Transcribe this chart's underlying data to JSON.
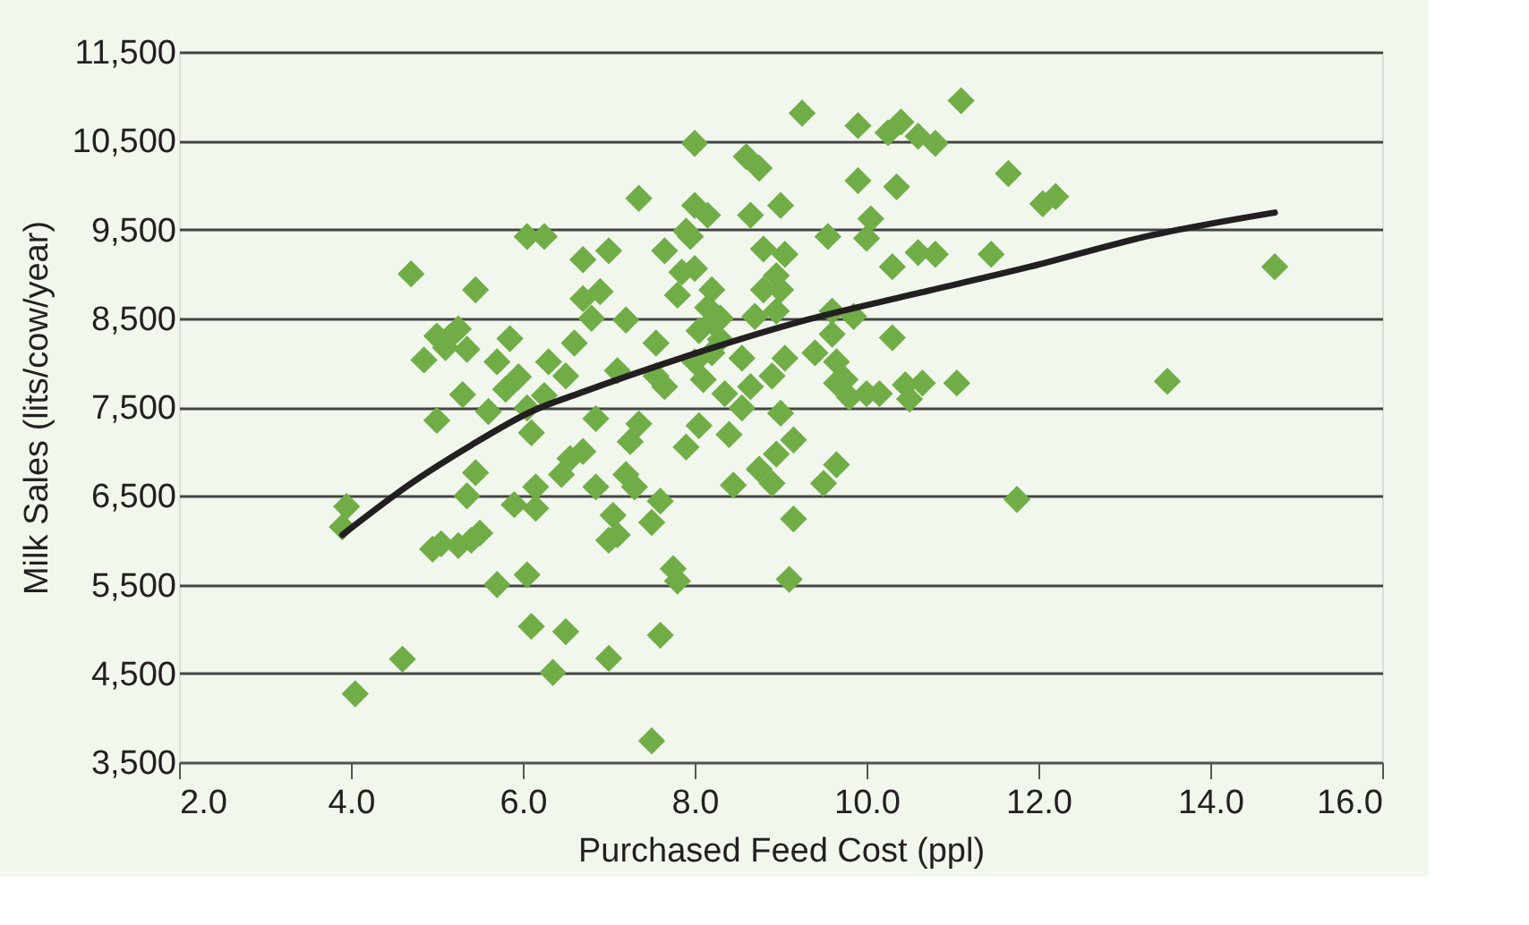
{
  "chart_data": {
    "type": "scatter",
    "xlabel": "Purchased Feed Cost (ppl)",
    "ylabel": "Milk Sales (lits/cow/year)",
    "grid": "y",
    "xlim": [
      2,
      16
    ],
    "xticks": [
      {
        "value": 2,
        "label": "2.0"
      },
      {
        "value": 4,
        "label": "4.0"
      },
      {
        "value": 6,
        "label": "6.0"
      },
      {
        "value": 8,
        "label": "8.0"
      },
      {
        "value": 10,
        "label": "10.0"
      },
      {
        "value": 12,
        "label": "12.0"
      },
      {
        "value": 14,
        "label": "14.0"
      },
      {
        "value": 16,
        "label": "16.0"
      }
    ],
    "ylim": [
      3500,
      11500
    ],
    "yticks": [
      {
        "value": 3500,
        "label": "3,500"
      },
      {
        "value": 4500,
        "label": "4,500"
      },
      {
        "value": 5500,
        "label": "5,500"
      },
      {
        "value": 6500,
        "label": "6,500"
      },
      {
        "value": 7500,
        "label": "7,500"
      },
      {
        "value": 8500,
        "label": "8,500"
      },
      {
        "value": 9500,
        "label": "9,500"
      },
      {
        "value": 10500,
        "label": "10,500"
      },
      {
        "value": 11500,
        "label": "11,500"
      }
    ],
    "series": [
      {
        "marker": "diamond",
        "color": "#70ad47",
        "x": [
          4.05,
          3.95,
          3.9,
          4.6,
          4.7,
          4.85,
          5.0,
          5.1,
          5.0,
          5.25,
          5.35,
          5.45,
          5.3,
          5.15,
          5.35,
          5.45,
          5.5,
          5.05,
          4.95,
          5.25,
          5.4,
          5.7,
          5.6,
          5.8,
          5.85,
          5.7,
          6.05,
          6.25,
          5.95,
          6.05,
          6.1,
          6.15,
          5.9,
          6.15,
          6.05,
          6.1,
          6.35,
          6.5,
          6.25,
          6.3,
          6.45,
          6.55,
          6.5,
          6.6,
          6.7,
          6.8,
          6.7,
          6.9,
          6.85,
          6.7,
          6.85,
          7.0,
          7.05,
          7.0,
          7.1,
          7.2,
          7.25,
          7.3,
          7.35,
          7.35,
          7.1,
          7.0,
          7.2,
          7.5,
          7.6,
          7.5,
          7.75,
          7.8,
          7.6,
          7.55,
          7.55,
          7.65,
          7.8,
          7.85,
          7.65,
          7.9,
          8.0,
          7.95,
          8.0,
          8.0,
          8.15,
          8.2,
          8.15,
          8.05,
          8.2,
          8.3,
          8.0,
          8.1,
          8.2,
          8.3,
          7.9,
          8.05,
          8.35,
          8.4,
          8.45,
          8.55,
          8.55,
          8.65,
          8.7,
          8.75,
          8.6,
          8.75,
          8.65,
          8.8,
          8.8,
          9.0,
          9.05,
          8.95,
          8.95,
          9.0,
          9.05,
          8.9,
          9.0,
          8.95,
          8.9,
          9.15,
          9.15,
          9.1,
          9.25,
          9.4,
          9.5,
          9.6,
          9.6,
          9.65,
          9.65,
          9.55,
          9.65,
          9.75,
          9.8,
          9.85,
          9.9,
          9.9,
          10.0,
          10.05,
          10.0,
          10.15,
          10.3,
          10.3,
          10.35,
          10.4,
          10.25,
          10.45,
          10.5,
          10.6,
          10.65,
          10.6,
          10.8,
          10.8,
          11.05,
          11.1,
          11.45,
          11.65,
          11.75,
          12.05,
          12.2,
          13.5,
          14.75
        ],
        "values": [
          4270,
          6380,
          6150,
          4660,
          9000,
          8030,
          8300,
          8170,
          7350,
          8380,
          8150,
          8820,
          7640,
          8290,
          6500,
          6760,
          6080,
          5960,
          5900,
          5940,
          6000,
          5500,
          7450,
          7700,
          8270,
          8010,
          9420,
          9420,
          7840,
          7490,
          7210,
          6600,
          6400,
          6360,
          5610,
          5030,
          4510,
          4970,
          7630,
          8010,
          6740,
          6920,
          7850,
          8220,
          8720,
          8500,
          9160,
          8800,
          7370,
          7000,
          6600,
          6000,
          6280,
          4670,
          6060,
          6740,
          7110,
          6600,
          9850,
          7310,
          7910,
          9260,
          8480,
          6200,
          6440,
          3740,
          5680,
          5540,
          4930,
          7850,
          8220,
          7730,
          8760,
          9020,
          9260,
          9480,
          9770,
          9420,
          10470,
          9060,
          9660,
          8820,
          8620,
          8360,
          8460,
          8500,
          8010,
          7810,
          8110,
          8260,
          7050,
          7290,
          7650,
          7190,
          6620,
          8050,
          7490,
          7730,
          8520,
          6800,
          10320,
          10190,
          9660,
          9280,
          8820,
          9770,
          9220,
          8980,
          8580,
          8820,
          8050,
          7850,
          7430,
          6970,
          6640,
          7130,
          6240,
          5560,
          10810,
          8110,
          6640,
          8580,
          8320,
          8010,
          7770,
          9420,
          6850,
          7810,
          7610,
          8520,
          10050,
          10670,
          9400,
          9620,
          7650,
          7650,
          9080,
          8280,
          9980,
          10710,
          10590,
          7750,
          7590,
          9240,
          7770,
          10550,
          10470,
          9220,
          7770,
          10950,
          9220,
          10130,
          6460,
          9790,
          9870,
          7790,
          9080
        ]
      },
      {
        "type": "line",
        "color": "#231f20",
        "x": [
          3.9,
          4.7,
          5.4,
          6.1,
          6.7,
          7.9,
          9.3,
          10.5,
          11.9,
          13.25,
          14.75
        ],
        "values": [
          6060,
          6640,
          7070,
          7450,
          7670,
          8070,
          8480,
          8760,
          9080,
          9420,
          9690
        ]
      }
    ]
  }
}
